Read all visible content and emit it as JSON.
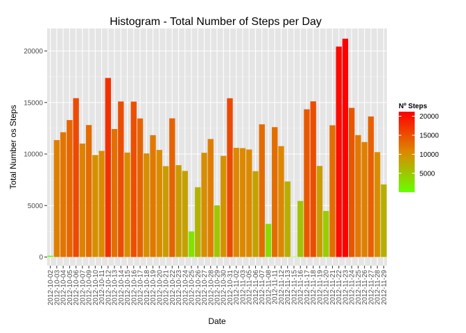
{
  "chart_data": {
    "type": "bar",
    "title": "Histogram - Total Number of Steps per Day",
    "xlabel": "Date",
    "ylabel": "Total Number os Steps",
    "ylim": [
      0,
      22500
    ],
    "y_ticks": [
      0,
      5000,
      10000,
      15000,
      20000
    ],
    "grid": true,
    "categories": [
      "2012-10-02",
      "2012-10-03",
      "2012-10-04",
      "2012-10-05",
      "2012-10-06",
      "2012-10-07",
      "2012-10-09",
      "2012-10-10",
      "2012-10-11",
      "2012-10-12",
      "2012-10-13",
      "2012-10-14",
      "2012-10-15",
      "2012-10-16",
      "2012-10-17",
      "2012-10-18",
      "2012-10-19",
      "2012-10-20",
      "2012-10-21",
      "2012-10-22",
      "2012-10-23",
      "2012-10-24",
      "2012-10-25",
      "2012-10-26",
      "2012-10-27",
      "2012-10-28",
      "2012-10-29",
      "2012-10-30",
      "2012-10-31",
      "2012-11-02",
      "2012-11-03",
      "2012-11-05",
      "2012-11-06",
      "2012-11-07",
      "2012-11-08",
      "2012-11-11",
      "2012-11-12",
      "2012-11-13",
      "2012-11-15",
      "2012-11-16",
      "2012-11-17",
      "2012-11-18",
      "2012-11-19",
      "2012-11-20",
      "2012-11-21",
      "2012-11-22",
      "2012-11-23",
      "2012-11-24",
      "2012-11-25",
      "2012-11-26",
      "2012-11-27",
      "2012-11-28",
      "2012-11-29"
    ],
    "values": [
      126,
      11352,
      12116,
      13294,
      15420,
      11015,
      12811,
      9900,
      10304,
      17382,
      12426,
      15098,
      10139,
      15084,
      13452,
      10056,
      11829,
      10395,
      8821,
      13460,
      8918,
      8355,
      2492,
      6778,
      10119,
      11458,
      5018,
      9819,
      15414,
      10600,
      10571,
      10439,
      8334,
      12883,
      3219,
      12608,
      10765,
      7336,
      41,
      5441,
      14339,
      15110,
      8841,
      4472,
      12787,
      20427,
      21194,
      14478,
      11834,
      11162,
      13646,
      10183,
      7047
    ],
    "legend": {
      "title": "Nº Steps",
      "position": "right",
      "labels": [
        "20000",
        "15000",
        "10000",
        "5000"
      ],
      "label_values": [
        20000,
        15000,
        10000,
        5000
      ]
    },
    "colors": {
      "low": "#66ff00",
      "mid": "#dd8800",
      "high": "#ff0000",
      "panel": "#e5e5e5",
      "grid_major": "#ffffff",
      "grid_minor": "#f2f2f2"
    }
  }
}
